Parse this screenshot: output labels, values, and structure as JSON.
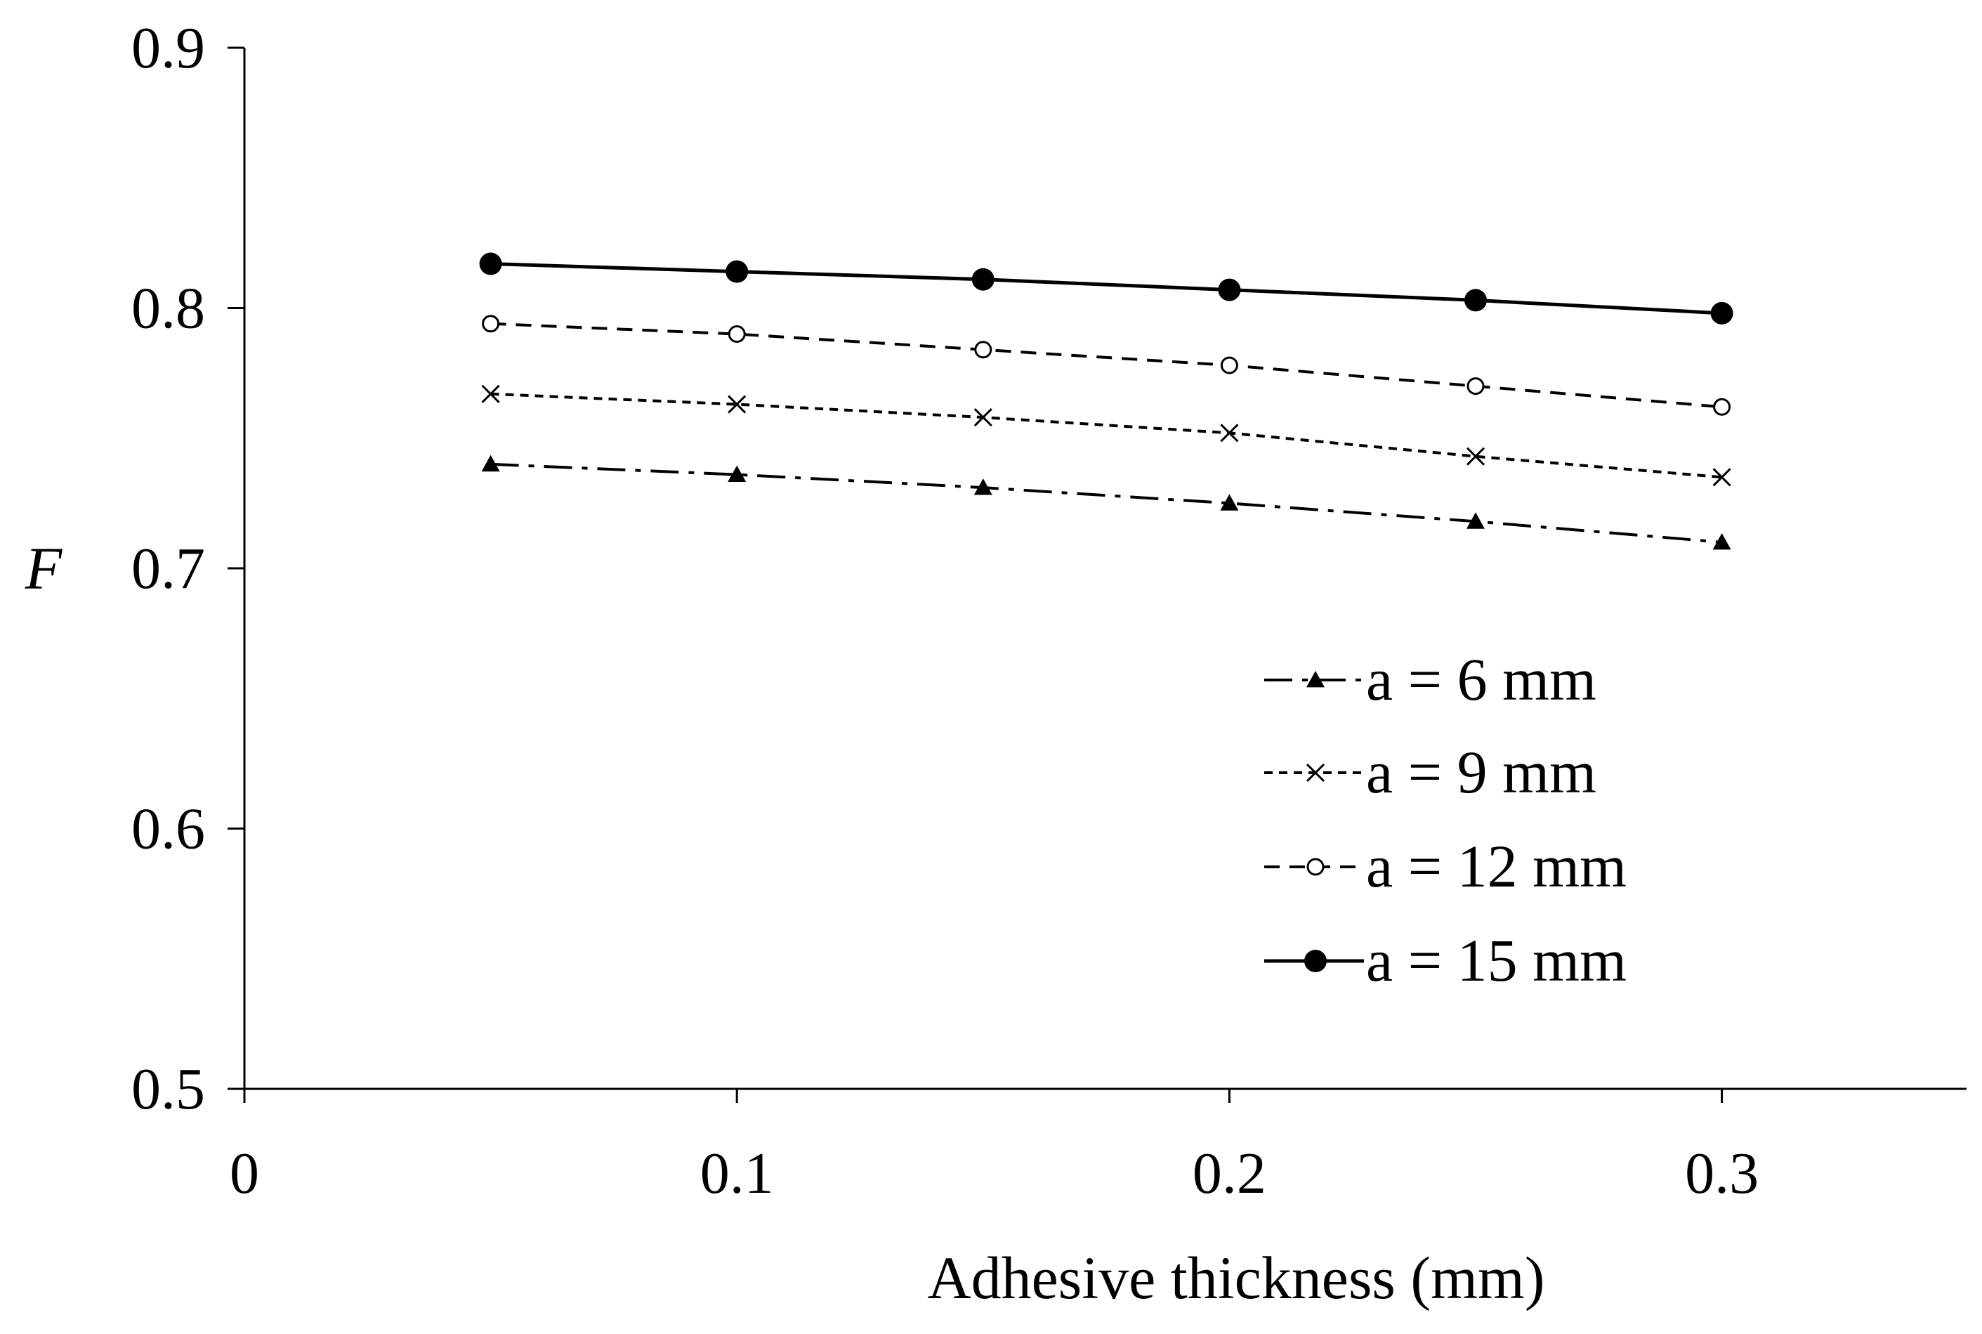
{
  "chart_data": {
    "type": "line",
    "title": "",
    "xlabel": "Adhesive thickness (mm)",
    "ylabel": "F",
    "xlim": [
      0,
      0.35
    ],
    "ylim": [
      0.5,
      0.9
    ],
    "x_ticks": [
      {
        "value": 0,
        "label": "0"
      },
      {
        "value": 0.1,
        "label": "0.1"
      },
      {
        "value": 0.2,
        "label": "0.2"
      },
      {
        "value": 0.3,
        "label": "0.3"
      }
    ],
    "y_ticks": [
      {
        "value": 0.5,
        "label": "0.5"
      },
      {
        "value": 0.6,
        "label": "0.6"
      },
      {
        "value": 0.7,
        "label": "0.7"
      },
      {
        "value": 0.8,
        "label": "0.8"
      },
      {
        "value": 0.9,
        "label": "0.9"
      }
    ],
    "grid": false,
    "legend_position": "center-right",
    "x": [
      0.05,
      0.1,
      0.15,
      0.2,
      0.25,
      0.3
    ],
    "series": [
      {
        "name": "a = 6 mm",
        "marker": "triangle",
        "line_style": "dash-dot",
        "color": "#000000",
        "values": [
          0.74,
          0.736,
          0.731,
          0.725,
          0.718,
          0.71
        ]
      },
      {
        "name": "a = 9 mm",
        "marker": "x",
        "line_style": "dotted",
        "color": "#000000",
        "values": [
          0.767,
          0.763,
          0.758,
          0.752,
          0.743,
          0.735
        ]
      },
      {
        "name": "a = 12 mm",
        "marker": "open-circle",
        "line_style": "dashed",
        "color": "#000000",
        "values": [
          0.794,
          0.79,
          0.784,
          0.778,
          0.77,
          0.762
        ]
      },
      {
        "name": "a = 15 mm",
        "marker": "filled-circle",
        "line_style": "solid",
        "color": "#000000",
        "values": [
          0.817,
          0.814,
          0.811,
          0.807,
          0.803,
          0.798
        ]
      }
    ]
  }
}
